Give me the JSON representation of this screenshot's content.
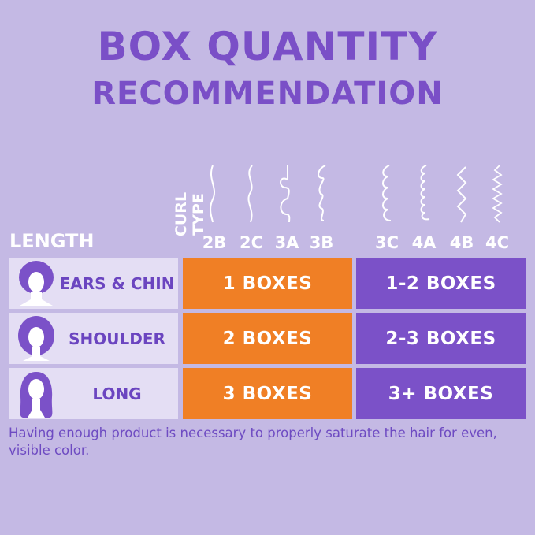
{
  "title": {
    "line1": "BOX QUANTITY",
    "line2": "RECOMMENDATION"
  },
  "headers": {
    "length": "LENGTH",
    "curl_type": "CURL TYPE"
  },
  "curl_types": [
    "2B",
    "2C",
    "3A",
    "3B",
    "3C",
    "4A",
    "4B",
    "4C"
  ],
  "rows": [
    {
      "length": "EARS & CHIN",
      "group1": "1 BOXES",
      "group2": "1-2 BOXES"
    },
    {
      "length": "SHOULDER",
      "group1": "2 BOXES",
      "group2": "2-3 BOXES"
    },
    {
      "length": "LONG",
      "group1": "3 BOXES",
      "group2": "3+ BOXES"
    }
  ],
  "note": "Having enough product is necessary to properly saturate the hair for even, visible color.",
  "colors": {
    "background": "#c4b9e4",
    "title": "#7a4fc7",
    "orange": "#f07f25",
    "purple": "#7b51c8",
    "label_bg": "#e4def4"
  }
}
